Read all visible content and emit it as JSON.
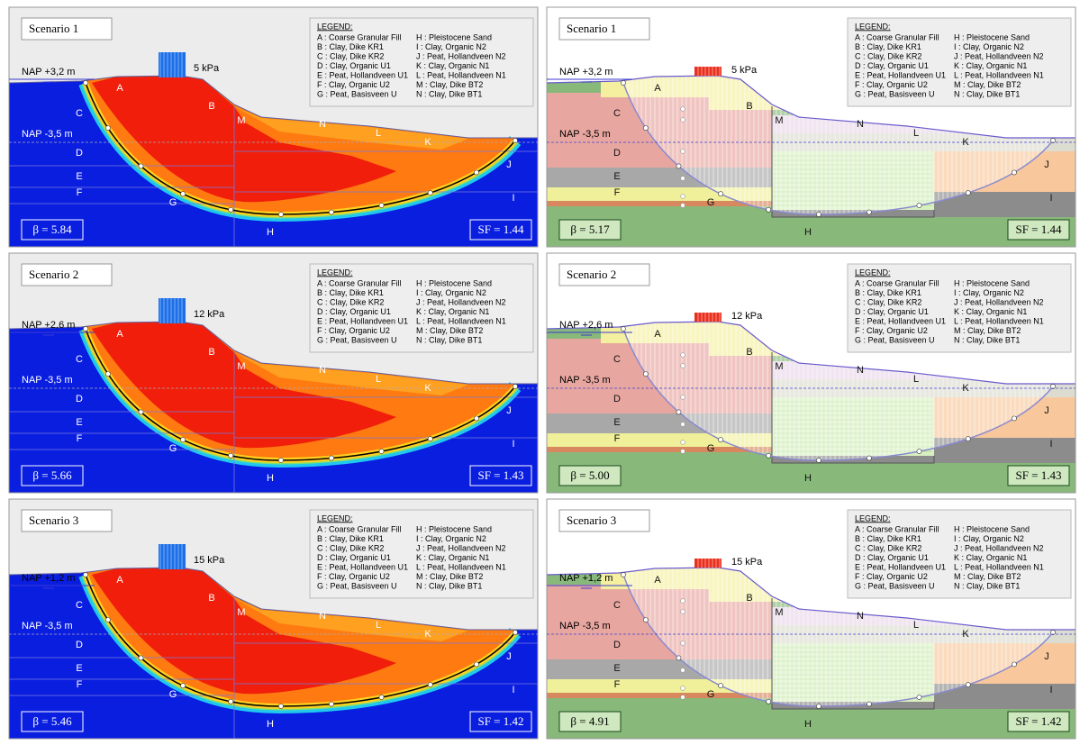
{
  "legend": {
    "title": "LEGEND:",
    "items": [
      "A : Coarse Granular Fill",
      "B : Clay, Dike KR1",
      "C : Clay, Dike KR2",
      "D : Clay, Organic U1",
      "E : Peat, Hollandveen U1",
      "F : Clay, Organic U2",
      "G : Peat, Basisveen U",
      "H : Pleistocene Sand",
      "I  : Clay, Organic N2",
      "J : Peat, Hollandveen N2",
      "K : Clay, Organic N1",
      "L : Peat, Hollandveen N1",
      "M : Clay, Dike BT2",
      "N : Clay, Dike BT1"
    ]
  },
  "layer_letters": [
    "A",
    "B",
    "C",
    "D",
    "E",
    "F",
    "G",
    "H",
    "I",
    "J",
    "K",
    "L",
    "M",
    "N"
  ],
  "rows": [
    {
      "scenario": "Scenario 1",
      "nap_top": "NAP +3,2 m",
      "nap_low": "NAP -3,5 m",
      "load": "5 kPa",
      "left": {
        "beta": "β = 5.84",
        "sf": "SF = 1.44"
      },
      "right": {
        "beta": "β = 5.17",
        "sf": "SF = 1.44"
      }
    },
    {
      "scenario": "Scenario 2",
      "nap_top": "NAP +2,6 m",
      "nap_low": "NAP -3,5 m",
      "load": "12 kPa",
      "left": {
        "beta": "β = 5.66",
        "sf": "SF = 1.43"
      },
      "right": {
        "beta": "β = 5.00",
        "sf": "SF = 1.43"
      }
    },
    {
      "scenario": "Scenario 3",
      "nap_top": "NAP +1,2 m",
      "nap_low": "NAP -3,5 m",
      "load": "15 kPa",
      "left": {
        "beta": "β = 5.46",
        "sf": "SF = 1.42"
      },
      "right": {
        "beta": "β = 4.91",
        "sf": "SF = 1.42"
      }
    }
  ]
}
